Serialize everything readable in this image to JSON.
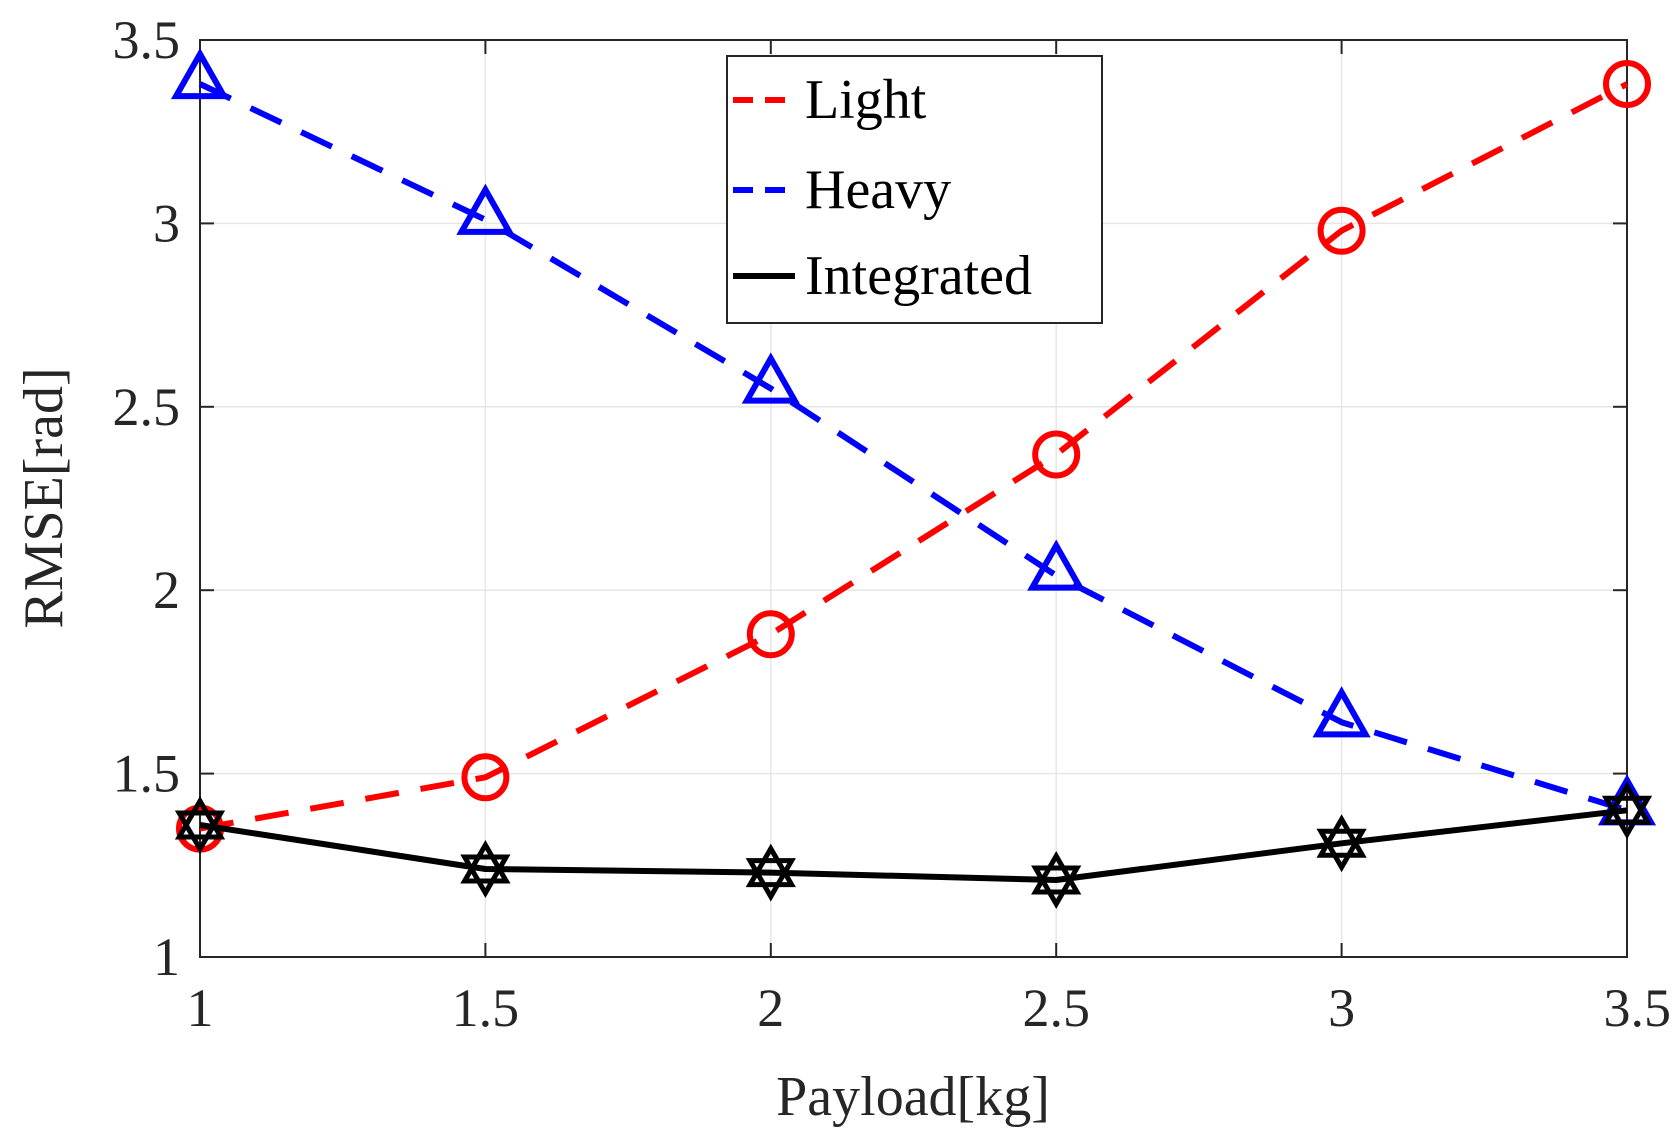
{
  "chart_data": {
    "type": "line",
    "title": "",
    "xlabel": "Payload[kg]",
    "ylabel": "RMSE[rad]",
    "xlim": [
      1,
      3.5
    ],
    "ylim": [
      1,
      3.5
    ],
    "xticks": [
      "1",
      "1.5",
      "2",
      "2.5",
      "3",
      "3.5"
    ],
    "yticks": [
      "1",
      "1.5",
      "2",
      "2.5",
      "3",
      "3.5"
    ],
    "grid": true,
    "legend_position": "top-center",
    "x": [
      1,
      1.5,
      2,
      2.5,
      3,
      3.5
    ],
    "series": [
      {
        "name": "Light",
        "values": [
          1.35,
          1.49,
          1.88,
          2.37,
          2.98,
          3.38
        ],
        "color": "#ff0000",
        "line": "dashed",
        "marker": "circle"
      },
      {
        "name": "Heavy",
        "values": [
          3.38,
          3.01,
          2.55,
          2.04,
          1.64,
          1.4
        ],
        "color": "#0000ff",
        "line": "dashed",
        "marker": "triangle"
      },
      {
        "name": "Integrated",
        "values": [
          1.36,
          1.24,
          1.23,
          1.21,
          1.31,
          1.4
        ],
        "color": "#000000",
        "line": "solid",
        "marker": "hexagram"
      }
    ]
  }
}
